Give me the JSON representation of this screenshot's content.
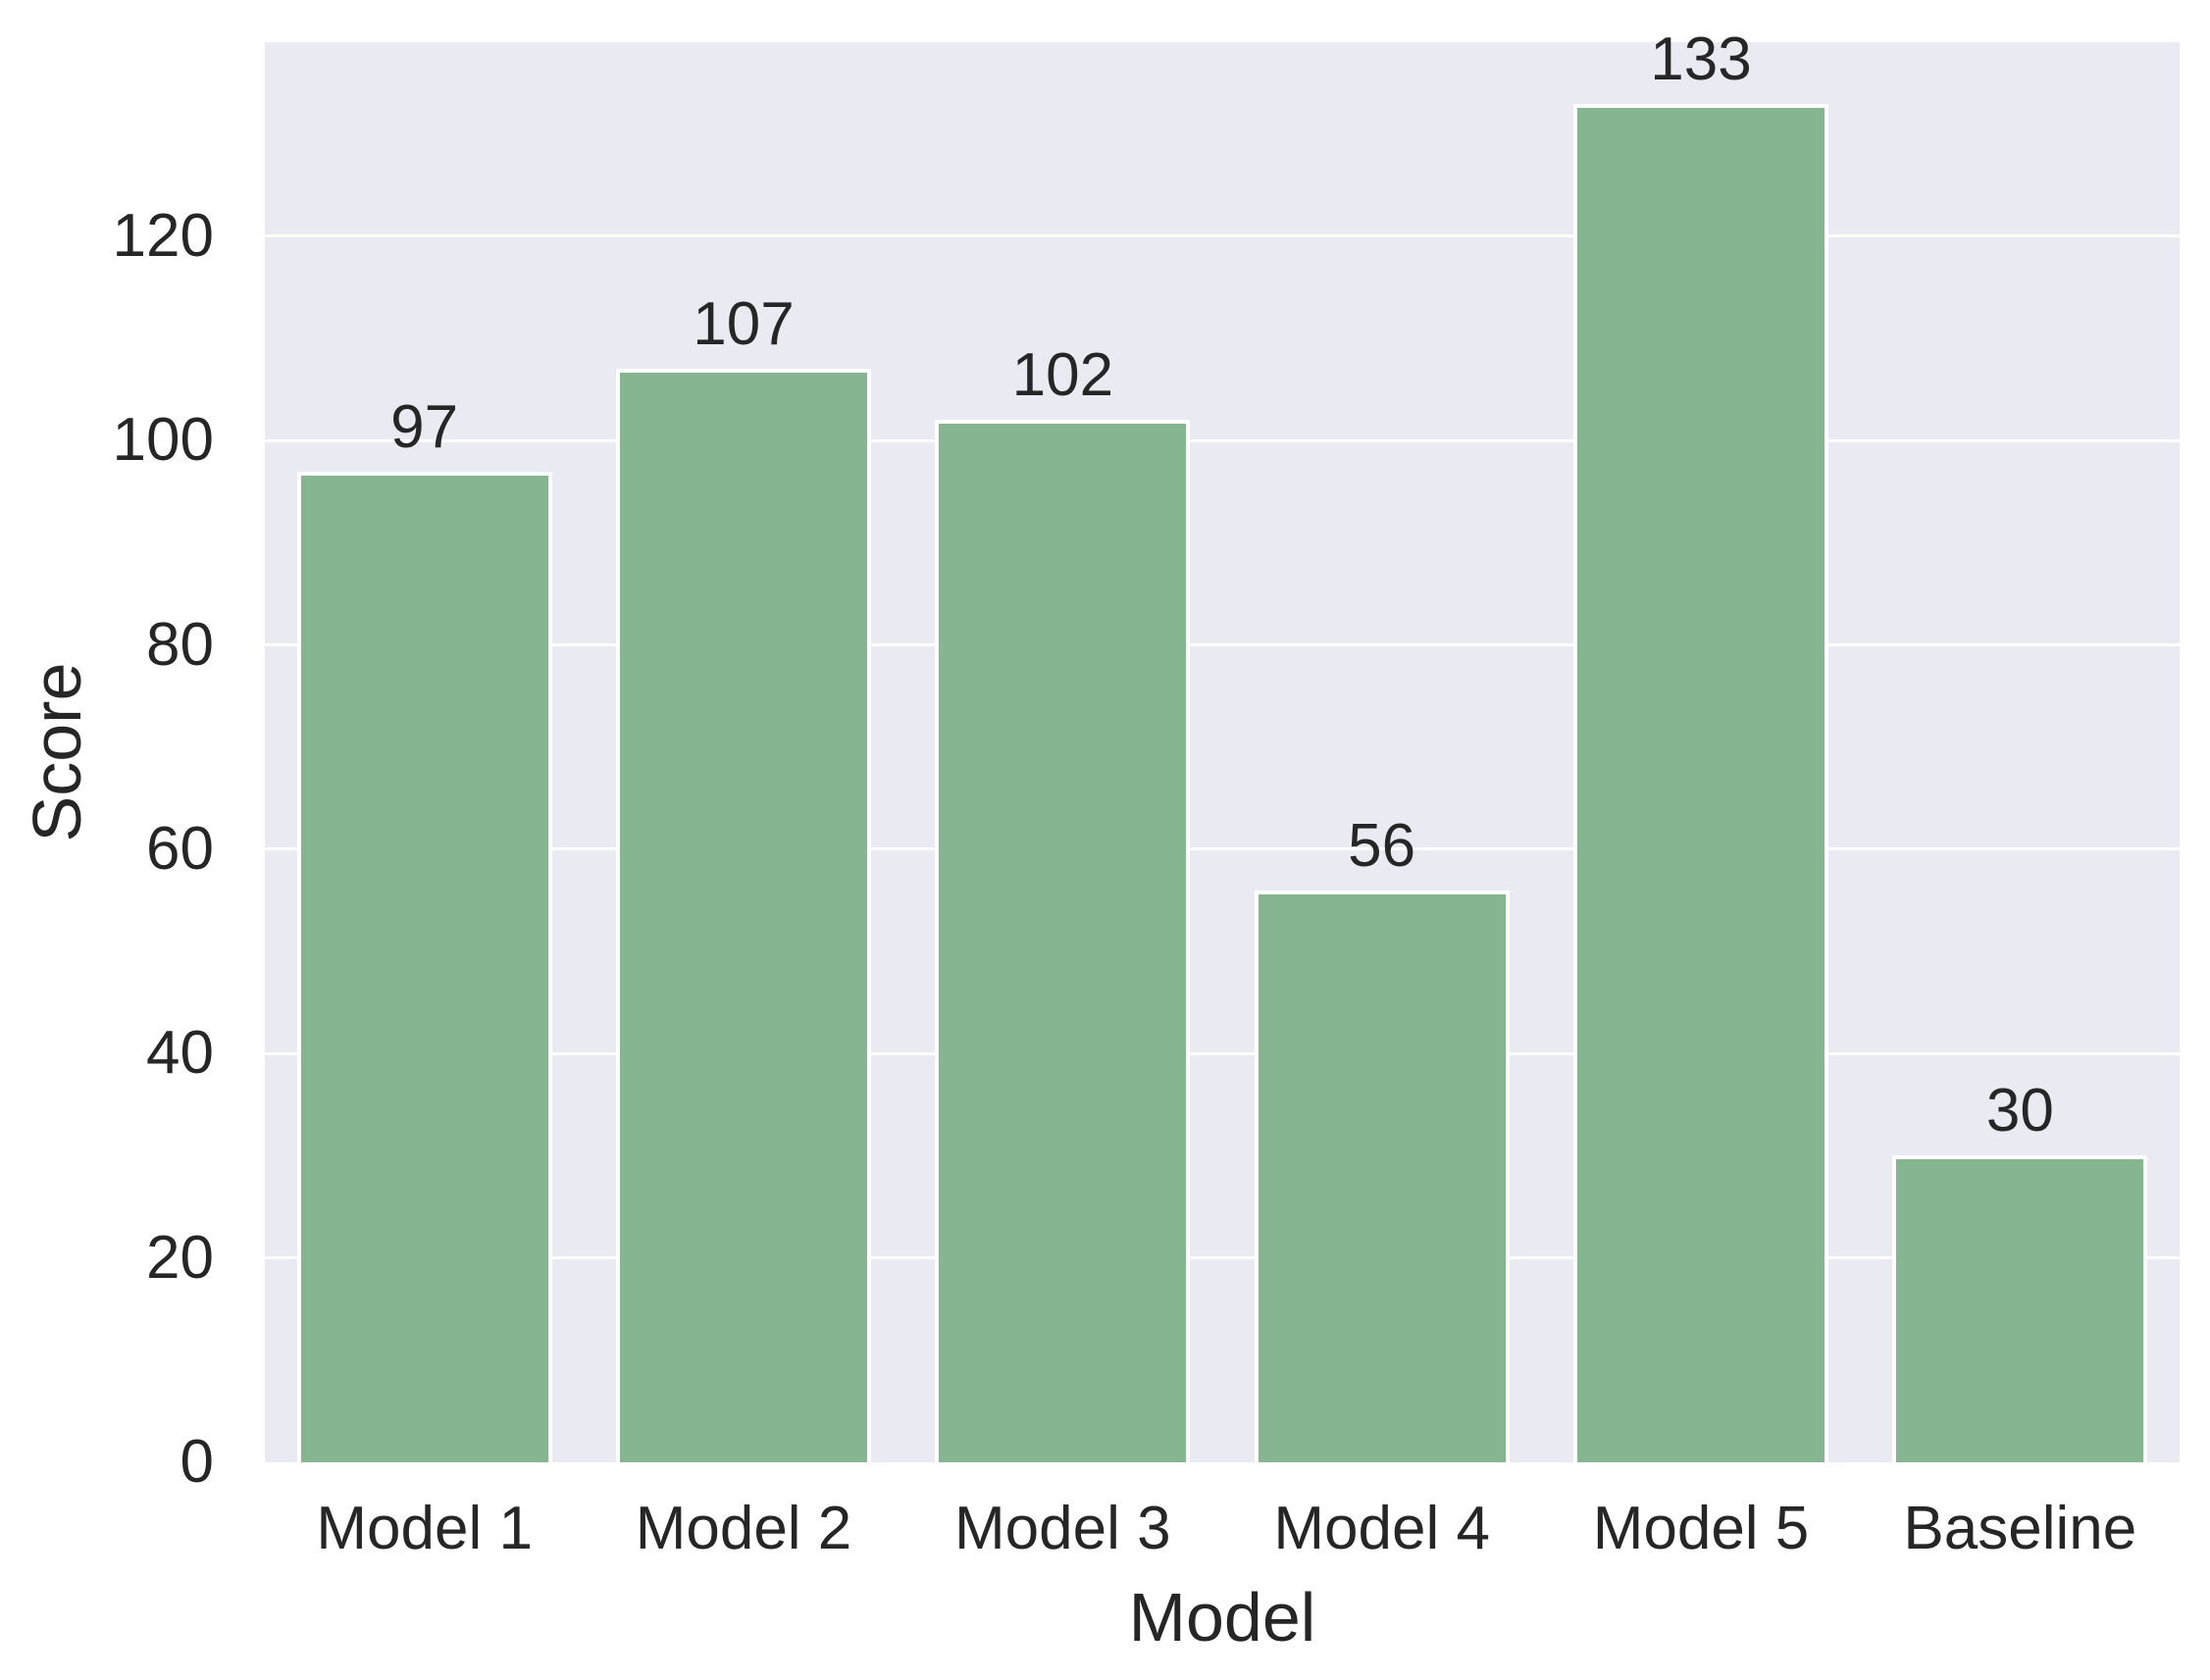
{
  "chart_data": {
    "type": "bar",
    "categories": [
      "Model 1",
      "Model 2",
      "Model 3",
      "Model 4",
      "Model 5",
      "Baseline"
    ],
    "values": [
      97,
      107,
      102,
      56,
      133,
      30
    ],
    "title": "",
    "xlabel": "Model",
    "ylabel": "Score",
    "ylim": [
      0,
      139
    ],
    "yticks": [
      0,
      20,
      40,
      60,
      80,
      100,
      120
    ],
    "grid": "horizontal",
    "legend": "none",
    "colors": {
      "bar_fill": "#86b592",
      "bar_edge": "#ffffff",
      "plot_background": "#eaeaf2",
      "gridline": "#ffffff",
      "text": "#262626",
      "figure_background": "#ffffff"
    }
  }
}
